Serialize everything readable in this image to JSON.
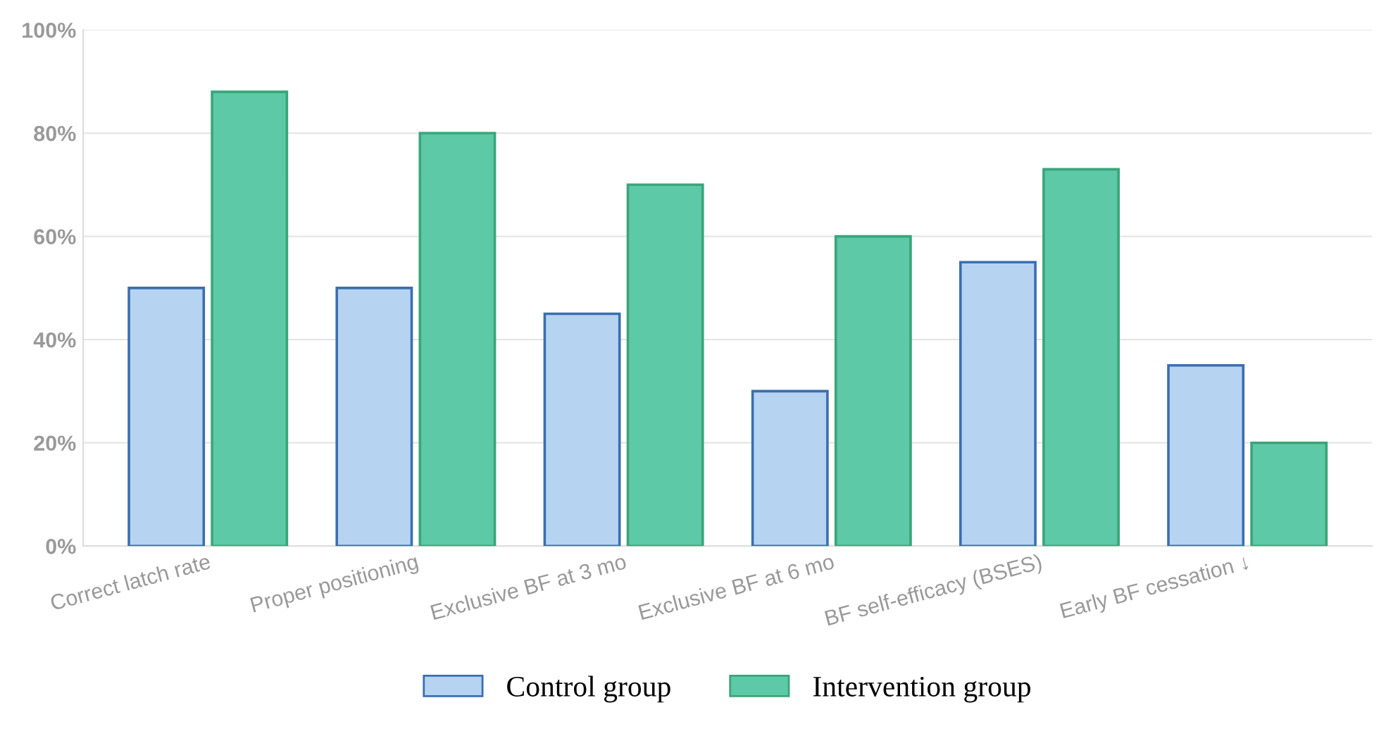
{
  "chart_data": {
    "type": "bar",
    "categories": [
      "Correct latch rate",
      "Proper positioning",
      "Exclusive BF at 3 mo",
      "Exclusive BF at 6 mo",
      "BF self-efficacy (BSES)",
      "Early BF cessation ↓"
    ],
    "series": [
      {
        "name": "Control group",
        "color": "#b6d4f2",
        "values": [
          50,
          50,
          45,
          30,
          55,
          35
        ]
      },
      {
        "name": "Intervention group",
        "color": "#5ec9a6",
        "values": [
          88,
          80,
          70,
          60,
          73,
          20
        ]
      }
    ],
    "ylim": [
      0,
      100
    ],
    "yticks": [
      {
        "value": 0,
        "label": "0%"
      },
      {
        "value": 20,
        "label": "20%"
      },
      {
        "value": 40,
        "label": "40%"
      },
      {
        "value": 60,
        "label": "60%"
      },
      {
        "value": 80,
        "label": "80%"
      },
      {
        "value": 100,
        "label": "100%"
      }
    ],
    "grid": "y",
    "legend": "bottom"
  }
}
